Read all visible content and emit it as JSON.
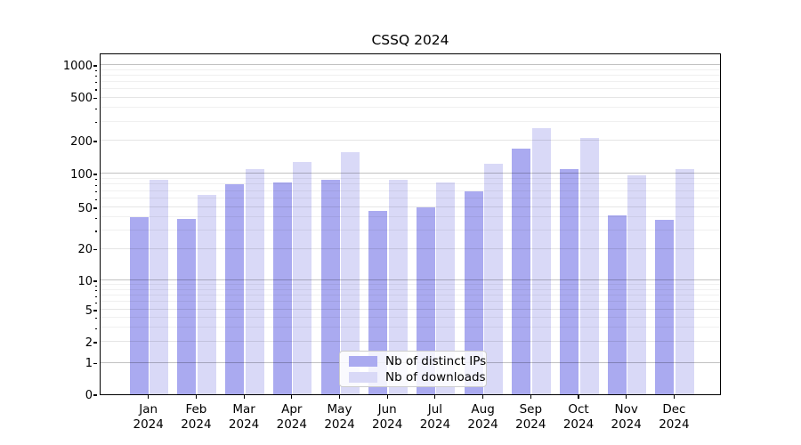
{
  "chart_data": {
    "type": "bar",
    "title": "CSSQ 2024",
    "categories": [
      "Jan",
      "Feb",
      "Mar",
      "Apr",
      "May",
      "Jun",
      "Jul",
      "Aug",
      "Sep",
      "Oct",
      "Nov",
      "Dec"
    ],
    "x_year_label": "2024",
    "series": [
      {
        "name": "Nb of distinct IPs",
        "color": "#aaaaf0",
        "values": [
          40,
          39,
          80,
          83,
          88,
          46,
          50,
          70,
          168,
          110,
          42,
          38
        ]
      },
      {
        "name": "Nb of downloads",
        "color": "#d9d9f7",
        "values": [
          88,
          65,
          110,
          128,
          157,
          88,
          84,
          124,
          260,
          210,
          96,
          110
        ]
      }
    ],
    "yaxis": {
      "scale": "symlog",
      "tick_values": [
        0,
        1,
        2,
        5,
        10,
        20,
        50,
        100,
        200,
        500,
        1000
      ],
      "tick_labels": [
        "0",
        "1",
        "2",
        "5",
        "10",
        "20",
        "50",
        "100",
        "200",
        "500",
        "1000"
      ],
      "range": [
        0,
        1300
      ]
    },
    "grid": true,
    "legend_position": "lower center"
  }
}
